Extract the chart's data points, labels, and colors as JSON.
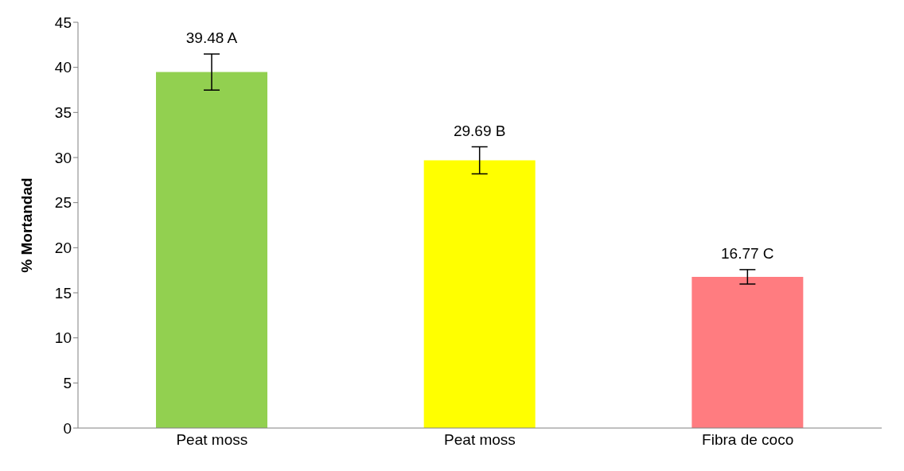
{
  "chart_data": {
    "type": "bar",
    "ylabel": "% Mortandad",
    "categories": [
      "Peat moss",
      "Peat moss",
      "Fibra de coco"
    ],
    "values": [
      39.48,
      29.69,
      16.77
    ],
    "colors": [
      "#92d050",
      "#ffff00",
      "#ff7c80"
    ],
    "errors": [
      2.0,
      1.5,
      0.8
    ],
    "value_labels": [
      "39.48 A",
      "29.69 B",
      "16.77 C"
    ],
    "ylim": [
      0,
      45
    ],
    "yticks": [
      0,
      5,
      10,
      15,
      20,
      25,
      30,
      35,
      40,
      45
    ],
    "grid": false,
    "legend": false
  }
}
